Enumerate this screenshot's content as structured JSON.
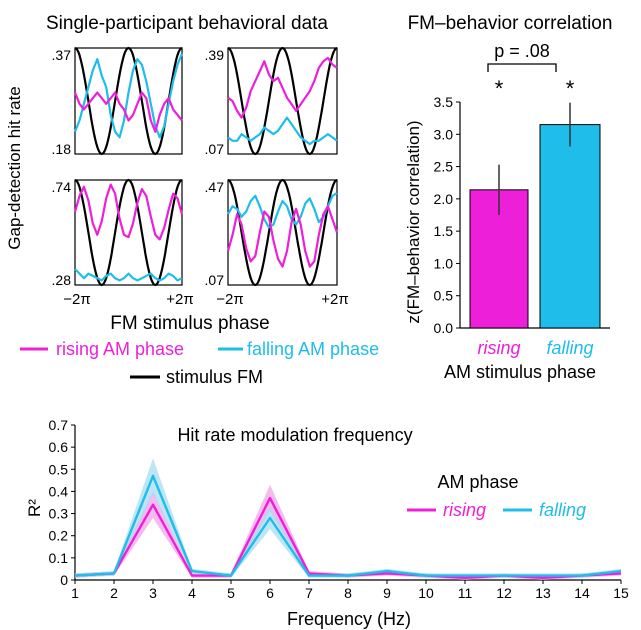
{
  "colors": {
    "rising": "#ee1fd9",
    "falling": "#1fbde9",
    "stimulus": "#000000",
    "rising_band": "#f1a3e8",
    "falling_band": "#a5dcf1"
  },
  "chart_data": [
    {
      "id": "single-participant",
      "type": "line",
      "title": "Single-participant behavioral data",
      "xlabel": "FM stimulus phase",
      "ylabel": "Gap-detection hit rate",
      "xticks": [
        "−2π",
        "+2π"
      ],
      "legend": {
        "rising": "rising AM phase",
        "falling": "falling AM phase",
        "stimulus": "stimulus FM"
      },
      "x_samples": 25,
      "panels": [
        {
          "ylim": [
            0.18,
            0.37
          ],
          "yticks": [
            ".37",
            ".18"
          ],
          "series": {
            "rising": [
              0.29,
              0.27,
              0.26,
              0.27,
              0.28,
              0.29,
              0.28,
              0.27,
              0.28,
              0.29,
              0.27,
              0.26,
              0.24,
              0.25,
              0.27,
              0.29,
              0.28,
              0.24,
              0.22,
              0.25,
              0.27,
              0.28,
              0.26,
              0.25,
              0.24
            ],
            "falling": [
              0.22,
              0.24,
              0.27,
              0.3,
              0.33,
              0.35,
              0.32,
              0.3,
              0.25,
              0.22,
              0.21,
              0.24,
              0.29,
              0.33,
              0.35,
              0.34,
              0.31,
              0.27,
              0.23,
              0.21,
              0.23,
              0.27,
              0.31,
              0.34,
              0.36
            ]
          }
        },
        {
          "ylim": [
            0.07,
            0.39
          ],
          "yticks": [
            ".39",
            ".07"
          ],
          "series": {
            "rising": [
              0.24,
              0.23,
              0.2,
              0.18,
              0.21,
              0.26,
              0.29,
              0.32,
              0.35,
              0.31,
              0.29,
              0.3,
              0.27,
              0.24,
              0.22,
              0.2,
              0.22,
              0.24,
              0.26,
              0.29,
              0.33,
              0.35,
              0.36,
              0.34,
              0.33
            ],
            "falling": [
              0.12,
              0.11,
              0.11,
              0.13,
              0.12,
              0.11,
              0.12,
              0.13,
              0.15,
              0.14,
              0.13,
              0.14,
              0.16,
              0.18,
              0.16,
              0.14,
              0.12,
              0.11,
              0.1,
              0.11,
              0.11,
              0.12,
              0.13,
              0.12,
              0.11
            ]
          }
        },
        {
          "ylim": [
            0.28,
            0.74
          ],
          "yticks": [
            ".74",
            ".28"
          ],
          "series": {
            "rising": [
              0.6,
              0.67,
              0.71,
              0.65,
              0.55,
              0.5,
              0.56,
              0.66,
              0.72,
              0.68,
              0.57,
              0.5,
              0.49,
              0.55,
              0.64,
              0.7,
              0.67,
              0.58,
              0.5,
              0.48,
              0.53,
              0.61,
              0.68,
              0.66,
              0.59
            ],
            "falling": [
              0.35,
              0.33,
              0.31,
              0.33,
              0.32,
              0.31,
              0.3,
              0.32,
              0.33,
              0.31,
              0.3,
              0.31,
              0.33,
              0.31,
              0.3,
              0.31,
              0.32,
              0.33,
              0.31,
              0.3,
              0.31,
              0.33,
              0.32,
              0.3,
              0.31
            ]
          }
        },
        {
          "ylim": [
            0.07,
            0.47
          ],
          "yticks": [
            ".47",
            ".07"
          ],
          "series": {
            "rising": [
              0.2,
              0.26,
              0.34,
              0.3,
              0.21,
              0.16,
              0.18,
              0.27,
              0.35,
              0.33,
              0.24,
              0.17,
              0.14,
              0.2,
              0.31,
              0.36,
              0.3,
              0.2,
              0.14,
              0.16,
              0.26,
              0.34,
              0.37,
              0.32,
              0.27
            ],
            "falling": [
              0.34,
              0.37,
              0.36,
              0.33,
              0.35,
              0.39,
              0.41,
              0.37,
              0.32,
              0.29,
              0.3,
              0.35,
              0.39,
              0.37,
              0.32,
              0.3,
              0.33,
              0.38,
              0.4,
              0.36,
              0.31,
              0.33,
              0.37,
              0.41,
              0.42
            ]
          }
        }
      ]
    },
    {
      "id": "fm-behavior-correlation",
      "type": "bar",
      "title": "FM–behavior correlation",
      "categories": [
        "rising",
        "falling"
      ],
      "values": [
        2.14,
        3.15
      ],
      "errors": [
        0.39,
        0.34
      ],
      "significance": [
        "*",
        "*"
      ],
      "comparison_label": "p = .08",
      "xlabel": "AM stimulus phase",
      "ylabel": "z(FM–behavior correlation)",
      "ylim": [
        0,
        3.5
      ],
      "yticks": [
        "0.0",
        "0.5",
        "1.0",
        "1.5",
        "2.0",
        "2.5",
        "3.0",
        "3.5"
      ]
    },
    {
      "id": "hit-rate-modulation-frequency",
      "type": "line",
      "title": "Hit rate modulation frequency",
      "xlabel": "Frequency (Hz)",
      "ylabel": "R²",
      "xlim": [
        1,
        15
      ],
      "ylim": [
        0,
        0.7
      ],
      "xticks": [
        "1",
        "2",
        "3",
        "4",
        "5",
        "6",
        "7",
        "8",
        "9",
        "10",
        "11",
        "12",
        "13",
        "14",
        "15"
      ],
      "yticks": [
        "0",
        "0.1",
        "0.2",
        "0.3",
        "0.4",
        "0.5",
        "0.6",
        "0.7"
      ],
      "legend_title": "AM phase",
      "series": [
        {
          "name": "rising",
          "x": [
            1,
            2,
            3,
            4,
            5,
            6,
            7,
            8,
            9,
            10,
            11,
            12,
            13,
            14,
            15
          ],
          "y": [
            0.02,
            0.03,
            0.34,
            0.02,
            0.02,
            0.37,
            0.03,
            0.02,
            0.03,
            0.02,
            0.01,
            0.02,
            0.01,
            0.02,
            0.03
          ],
          "band": [
            0.01,
            0.01,
            0.06,
            0.01,
            0.01,
            0.06,
            0.01,
            0.01,
            0.01,
            0.01,
            0.01,
            0.01,
            0.01,
            0.01,
            0.01
          ]
        },
        {
          "name": "falling",
          "x": [
            1,
            2,
            3,
            4,
            5,
            6,
            7,
            8,
            9,
            10,
            11,
            12,
            13,
            14,
            15
          ],
          "y": [
            0.02,
            0.03,
            0.47,
            0.04,
            0.02,
            0.28,
            0.02,
            0.02,
            0.04,
            0.02,
            0.02,
            0.02,
            0.02,
            0.02,
            0.04
          ],
          "band": [
            0.01,
            0.01,
            0.08,
            0.01,
            0.01,
            0.05,
            0.01,
            0.01,
            0.01,
            0.01,
            0.01,
            0.01,
            0.01,
            0.01,
            0.01
          ]
        }
      ]
    }
  ]
}
